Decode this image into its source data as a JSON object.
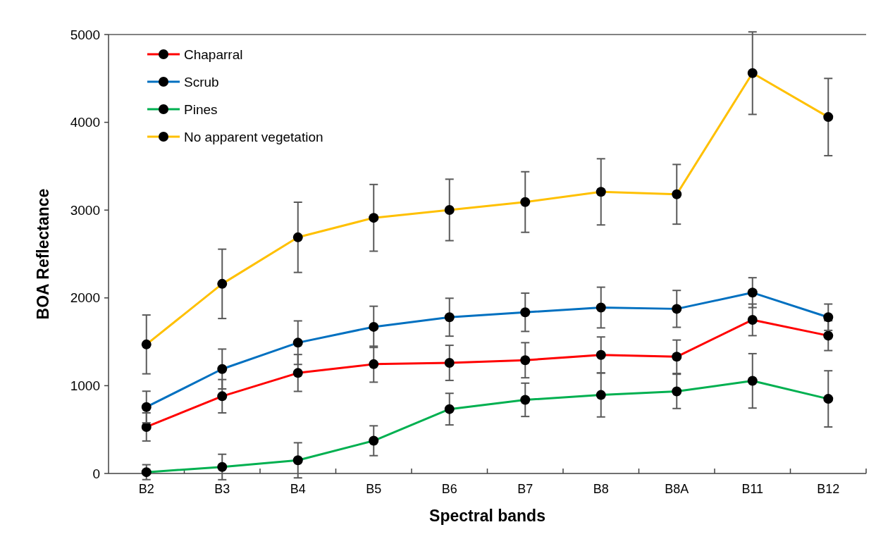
{
  "chart_data": {
    "type": "line",
    "xlabel": "Spectral bands",
    "ylabel": "BOA Reflectance",
    "categories": [
      "B2",
      "B3",
      "B4",
      "B5",
      "B6",
      "B7",
      "B8",
      "B8A",
      "B11",
      "B12"
    ],
    "ylim": [
      0,
      5000
    ],
    "yticks": [
      0,
      1000,
      2000,
      3000,
      4000,
      5000
    ],
    "grid": false,
    "legend": "top left",
    "marker": "circle",
    "line_style": "solid",
    "series": [
      {
        "name": "Chaparral",
        "color": "#ff0000",
        "values": [
          530,
          880,
          1145,
          1245,
          1260,
          1290,
          1350,
          1330,
          1750,
          1570
        ],
        "errors": [
          160,
          190,
          210,
          205,
          200,
          200,
          205,
          190,
          180,
          170
        ]
      },
      {
        "name": "Scrub",
        "color": "#0070c0",
        "values": [
          757,
          1190,
          1490,
          1670,
          1780,
          1836,
          1890,
          1875,
          2060,
          1780
        ],
        "errors": [
          180,
          227,
          248,
          235,
          216,
          218,
          232,
          210,
          170,
          150
        ]
      },
      {
        "name": "Pines",
        "color": "#00b050",
        "values": [
          15,
          74,
          150,
          373,
          733,
          839,
          894,
          935,
          1055,
          850
        ],
        "errors": [
          85,
          145,
          200,
          170,
          180,
          190,
          250,
          195,
          310,
          320
        ]
      },
      {
        "name": "No apparent vegetation",
        "color": "#ffc000",
        "values": [
          1470,
          2160,
          2690,
          2912,
          3002,
          3092,
          3208,
          3180,
          4560,
          4060
        ],
        "errors": [
          335,
          395,
          400,
          380,
          350,
          345,
          377,
          340,
          470,
          440
        ]
      }
    ]
  }
}
